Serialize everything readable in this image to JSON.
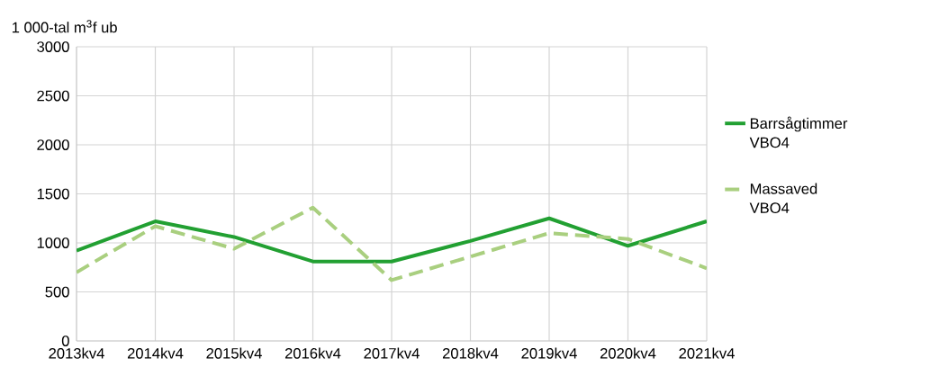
{
  "chart_data": {
    "type": "line",
    "ylabel": "1 000-tal m$^{3}$f ub",
    "categories": [
      "2013kv4",
      "2014kv4",
      "2015kv4",
      "2016kv4",
      "2017kv4",
      "2018kv4",
      "2019kv4",
      "2020kv4",
      "2021kv4"
    ],
    "series": [
      {
        "name": "Barrsågtimmer VBO4",
        "color": "#22a032",
        "line_style": "solid",
        "values": [
          920,
          1220,
          1060,
          810,
          810,
          1020,
          1250,
          970,
          1220
        ]
      },
      {
        "name": "Massaved VBO4",
        "color": "#a9cf7f",
        "line_style": "dashed",
        "values": [
          700,
          1170,
          940,
          1360,
          620,
          860,
          1100,
          1040,
          740
        ]
      }
    ],
    "ylim": [
      0,
      3000
    ],
    "yticks": [
      0,
      500,
      1000,
      1500,
      2000,
      2500,
      3000
    ],
    "grid": true,
    "legend": "right",
    "marker": "none"
  }
}
